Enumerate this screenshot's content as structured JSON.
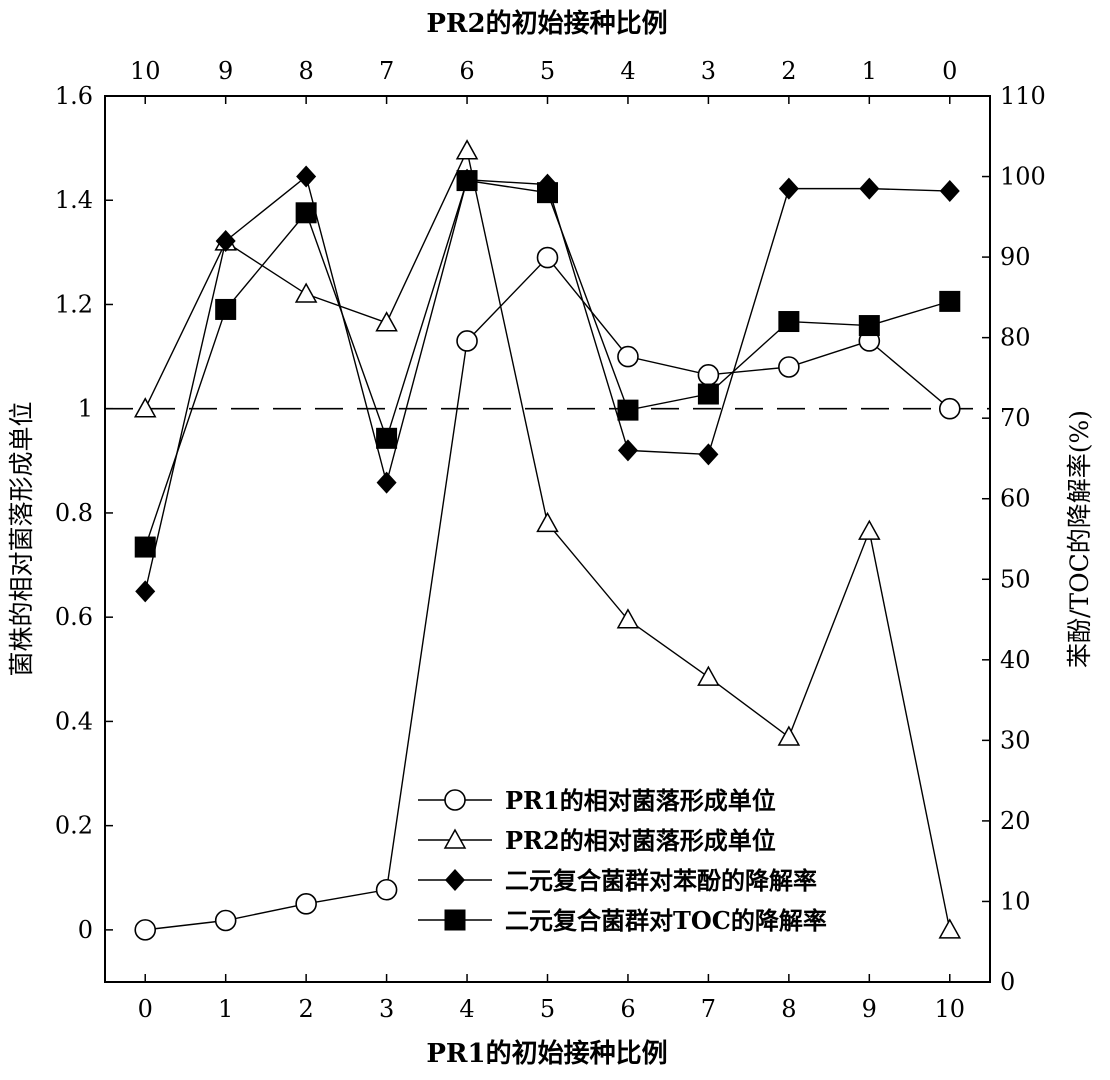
{
  "chart_data": {
    "type": "line",
    "x_bottom": {
      "label": "PR1的初始接种比例",
      "ticks": [
        0,
        1,
        2,
        3,
        4,
        5,
        6,
        7,
        8,
        9,
        10
      ],
      "range": [
        -0.5,
        10.5
      ]
    },
    "x_top": {
      "label": "PR2的初始接种比例",
      "ticks": [
        "10",
        "9",
        "8",
        "7",
        "6",
        "5",
        "4",
        "3",
        "2",
        "1",
        "0"
      ]
    },
    "y_left": {
      "label": "菌株的相对菌落形成单位",
      "range": [
        -0.1,
        1.6
      ],
      "ticks": [
        0,
        0.2,
        0.4,
        0.6,
        0.8,
        1,
        1.2,
        1.4,
        1.6
      ],
      "tick_labels": [
        "0",
        "0.2",
        "0.4",
        "0.6",
        "0.8",
        "1",
        "1.2",
        "1.4",
        "1.6"
      ]
    },
    "y_right": {
      "label": "苯酚/TOC的降解率(%)",
      "range": [
        0,
        110
      ],
      "ticks": [
        0,
        10,
        20,
        30,
        40,
        50,
        60,
        70,
        80,
        90,
        100,
        110
      ]
    },
    "reference_line": {
      "axis": "left",
      "value": 1,
      "style": "dashed"
    },
    "legend_position": "bottom-center",
    "series": [
      {
        "name": "PR1的相对菌落形成单位",
        "axis": "left",
        "marker": "circle-open",
        "x": [
          0,
          1,
          2,
          3,
          4,
          5,
          6,
          7,
          8,
          9,
          10
        ],
        "values": [
          0,
          0.018,
          0.05,
          0.077,
          1.13,
          1.29,
          1.1,
          1.065,
          1.08,
          1.13,
          1.0
        ]
      },
      {
        "name": "PR2的相对菌落形成单位",
        "axis": "left",
        "marker": "triangle-open",
        "x": [
          0,
          1,
          2,
          3,
          4,
          5,
          6,
          7,
          8,
          9,
          10
        ],
        "values": [
          1.0,
          1.32,
          1.22,
          1.165,
          1.495,
          0.78,
          0.595,
          0.485,
          0.37,
          0.765,
          0
        ]
      },
      {
        "name": "二元复合菌群对苯酚的降解率",
        "axis": "right",
        "marker": "diamond-filled",
        "x": [
          0,
          1,
          2,
          3,
          4,
          5,
          6,
          7,
          8,
          9,
          10
        ],
        "values": [
          48.5,
          92,
          100,
          62,
          99.6,
          99,
          66,
          65.5,
          98.5,
          98.5,
          98.2
        ]
      },
      {
        "name": "二元复合菌群对TOC的降解率",
        "axis": "right",
        "marker": "square-filled",
        "x": [
          0,
          1,
          2,
          3,
          4,
          5,
          6,
          7,
          8,
          9,
          10
        ],
        "values": [
          54,
          83.5,
          95.5,
          67.5,
          99.5,
          98,
          71,
          73,
          82,
          81.5,
          84.5
        ]
      }
    ]
  }
}
